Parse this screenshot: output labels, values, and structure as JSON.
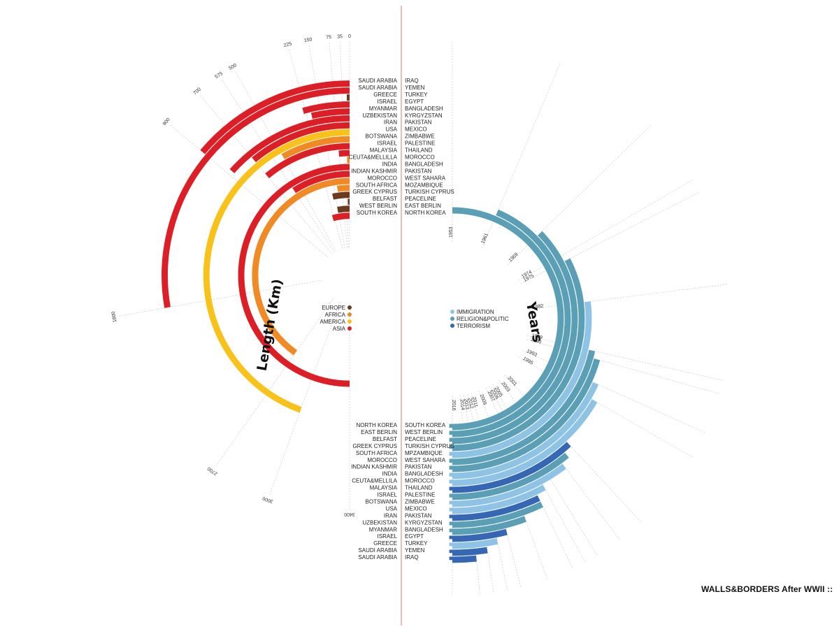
{
  "page": {
    "title": "WALLS&BORDERS After WWII ::"
  },
  "colors": {
    "europe": "#6b3a1f",
    "africa": "#f08a24",
    "america": "#f8c21a",
    "asia": "#dc1f26",
    "immigration": "#8fc3e6",
    "religion_politic": "#5a9fb5",
    "terrorism": "#3567b5",
    "center_line": "#d9534f",
    "guide": "#c8c8c8"
  },
  "legend_length": [
    {
      "label": "EUROPE",
      "color": "#6b3a1f"
    },
    {
      "label": "AFRICA",
      "color": "#f08a24"
    },
    {
      "label": "AMERICA",
      "color": "#f8c21a"
    },
    {
      "label": "ASIA",
      "color": "#dc1f26"
    }
  ],
  "legend_years": [
    {
      "label": "IMMIGRATION",
      "color": "#8fc3e6"
    },
    {
      "label": "RELIGION&POLITIC",
      "color": "#5a9fb5"
    },
    {
      "label": "TERRORISM",
      "color": "#3567b5"
    }
  ],
  "chart_data": {
    "type": "radial-bar",
    "title": "WALLS&BORDERS After WWII ::",
    "left_axis_label": "Length (Km)",
    "right_axis_label": "Years",
    "length_ticks": [
      0,
      35,
      75,
      150,
      225,
      500,
      575,
      700,
      900,
      1800,
      2700,
      3000,
      3400
    ],
    "year_ticks": [
      1953,
      1961,
      1969,
      1974,
      1975,
      1982,
      1989,
      1990,
      1993,
      1995,
      2001,
      2003,
      2005,
      2006,
      2007,
      2009,
      2011,
      2012,
      2013,
      2014,
      2016
    ],
    "walls": [
      {
        "side_a": "SAUDI ARABIA",
        "side_b": "IRAQ",
        "length_km": 900,
        "region": "asia",
        "year": 2014,
        "type": "terrorism"
      },
      {
        "side_a": "SAUDI ARABIA",
        "side_b": "YEMEN",
        "length_km": 1800,
        "region": "asia",
        "year": 2013,
        "type": "terrorism"
      },
      {
        "side_a": "GREECE",
        "side_b": "TURKEY",
        "length_km": 12,
        "region": "europe",
        "year": 2012,
        "type": "immigration"
      },
      {
        "side_a": "ISRAEL",
        "side_b": "EGYPT",
        "length_km": 240,
        "region": "asia",
        "year": 2011,
        "type": "terrorism"
      },
      {
        "side_a": "MYANMAR",
        "side_b": "BANGLADESH",
        "length_km": 200,
        "region": "asia",
        "year": 2009,
        "type": "religion_politic"
      },
      {
        "side_a": "UZBEKISTAN",
        "side_b": "KYRGYZSTAN",
        "length_km": 870,
        "region": "asia",
        "year": 2007,
        "type": "religion_politic"
      },
      {
        "side_a": "IRAN",
        "side_b": "PAKISTAN",
        "length_km": 700,
        "region": "asia",
        "year": 2007,
        "type": "terrorism"
      },
      {
        "side_a": "USA",
        "side_b": "MEXICO",
        "length_km": 3000,
        "region": "america",
        "year": 2006,
        "type": "immigration"
      },
      {
        "side_a": "BOTSWANA",
        "side_b": "ZIMBABWE",
        "length_km": 500,
        "region": "africa",
        "year": 2003,
        "type": "immigration"
      },
      {
        "side_a": "ISRAEL",
        "side_b": "PALESTINE",
        "length_km": 700,
        "region": "asia",
        "year": 2002,
        "type": "religion_politic"
      },
      {
        "side_a": "MALAYSIA",
        "side_b": "THAILAND",
        "length_km": 75,
        "region": "asia",
        "year": 2001,
        "type": "terrorism"
      },
      {
        "side_a": "CEUTA&MELLILLA",
        "side_b": "MOROCCO",
        "length_km": 19,
        "region": "africa",
        "year": 1995,
        "type": "immigration"
      },
      {
        "side_a": "INDIA",
        "side_b": "BANGLADESH",
        "length_km": 3400,
        "region": "asia",
        "year": 1993,
        "type": "immigration"
      },
      {
        "side_a": "INDIAN KASHMIR",
        "side_b": "PAKISTAN",
        "length_km": 575,
        "region": "asia",
        "year": 1990,
        "type": "religion_politic"
      },
      {
        "side_a": "MOROCCO",
        "side_b": "WEST SAHARA",
        "length_km": 2700,
        "region": "africa",
        "year": 1989,
        "type": "religion_politic"
      },
      {
        "side_a": "SOUTH AFRICA",
        "side_b": "MOZAMBIQUE",
        "length_km": 120,
        "region": "africa",
        "year": 1982,
        "type": "immigration"
      },
      {
        "side_a": "GREEK CYPRUS",
        "side_b": "TURKISH CYPRUS",
        "length_km": 180,
        "region": "europe",
        "year": 1975,
        "type": "religion_politic"
      },
      {
        "side_a": "BELFAST",
        "side_b": "PEACELINE",
        "length_km": 21,
        "region": "europe",
        "year": 1969,
        "type": "religion_politic"
      },
      {
        "side_a": "WEST BERLIN",
        "side_b": "EAST BERLIN",
        "length_km": 155,
        "region": "europe",
        "year": 1961,
        "type": "religion_politic"
      },
      {
        "side_a": "SOUTH KOREA",
        "side_b": "NORTH KOREA",
        "length_km": 250,
        "region": "asia",
        "year": 1953,
        "type": "religion_politic"
      }
    ],
    "lower_labels": [
      {
        "left": "NORTH KOREA",
        "right": "SOUTH KOREA"
      },
      {
        "left": "EAST BERLIN",
        "right": "WEST BERLIN"
      },
      {
        "left": "BELFAST",
        "right": "PEACELINE"
      },
      {
        "left": "GREEK CYPRUS",
        "right": "TURKISH CYPRUS"
      },
      {
        "left": "SOUTH AFRICA",
        "right": "MPZAMBIQUE"
      },
      {
        "left": "MOROCCO",
        "right": "WEST SAHARA"
      },
      {
        "left": "INDIAN KASHMIR",
        "right": "PAKISTAN"
      },
      {
        "left": "INDIA",
        "right": "BANGLADESH"
      },
      {
        "left": "CEUTA&MELLILA",
        "right": "MOROCCO"
      },
      {
        "left": "MALAYSIA",
        "right": "THAILAND"
      },
      {
        "left": "ISRAEL",
        "right": "PALESTINE"
      },
      {
        "left": "BOTSWANA",
        "right": "ZIMBABWE"
      },
      {
        "left": "USA",
        "right": "MEXICO"
      },
      {
        "left": "IRAN",
        "right": "PAKISTAN"
      },
      {
        "left": "UZBEKISTAN",
        "right": "KYRGYZSTAN"
      },
      {
        "left": "MYANMAR",
        "right": "BANGLADESH"
      },
      {
        "left": "ISRAEL",
        "right": "EGYPT"
      },
      {
        "left": "GREECE",
        "right": "TURKEY"
      },
      {
        "left": "SAUDI ARABIA",
        "right": "YEMEN"
      },
      {
        "left": "SAUDI ARABIA",
        "right": "IRAQ"
      }
    ]
  }
}
